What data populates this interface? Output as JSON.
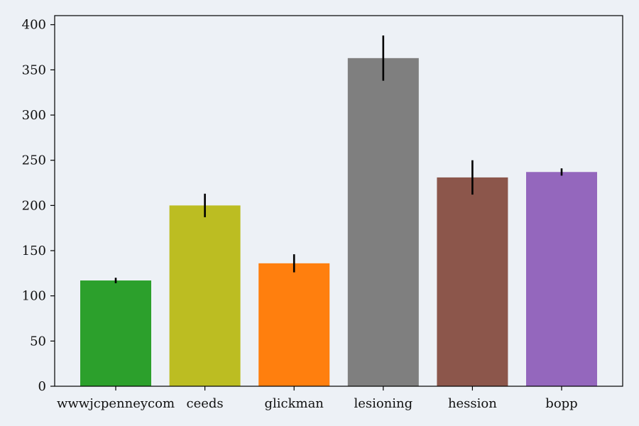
{
  "chart_data": {
    "type": "bar",
    "title": "",
    "xlabel": "",
    "ylabel": "",
    "categories": [
      "wwwjcpenneycom",
      "ceeds",
      "glickman",
      "lesioning",
      "hession",
      "bopp"
    ],
    "values": [
      117,
      200,
      136,
      363,
      231,
      237
    ],
    "errors": [
      3,
      13,
      10,
      25,
      19,
      4
    ],
    "colors": [
      "#2ca02c",
      "#bcbd22",
      "#ff7f0e",
      "#7f7f7f",
      "#8c564b",
      "#9467bd"
    ],
    "ylim": [
      0,
      410
    ],
    "yticks": [
      0,
      50,
      100,
      150,
      200,
      250,
      300,
      350,
      400
    ],
    "grid": false,
    "legend": "none"
  }
}
